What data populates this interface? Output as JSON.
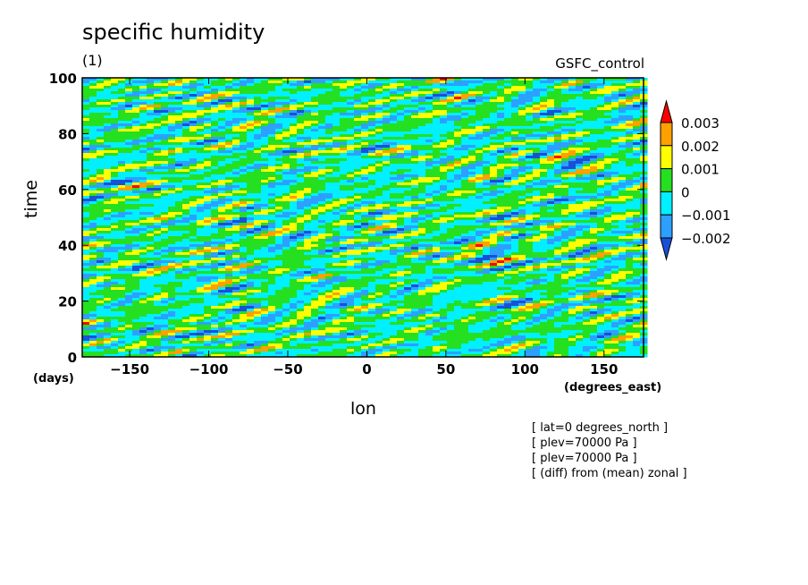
{
  "chart_data": {
    "type": "heatmap",
    "title": "specific humidity",
    "subtitle": "(1)",
    "run_label": "GSFC_control",
    "xlabel": "lon",
    "ylabel": "time",
    "x_unit": "(degrees_east)",
    "y_unit": "(days)",
    "xlim": [
      -180,
      175
    ],
    "ylim": [
      0,
      100
    ],
    "x_ticks": [
      -150,
      -100,
      -50,
      0,
      50,
      100,
      150
    ],
    "x_tick_labels": [
      "−150",
      "−100",
      "−50",
      "0",
      "50",
      "100",
      "150"
    ],
    "y_ticks": [
      0,
      20,
      40,
      60,
      80,
      100
    ],
    "y_tick_labels": [
      "0",
      "20",
      "40",
      "60",
      "80",
      "100"
    ],
    "color_levels": [
      -0.002,
      -0.001,
      0,
      0.001,
      0.002,
      0.003
    ],
    "colorbar_labels": [
      "0.003",
      "0.002",
      "0.001",
      "0",
      "−0.001",
      "−0.002"
    ],
    "colors": [
      "#1a50d8",
      "#2da0ff",
      "#00f0ff",
      "#25e020",
      "#ffff00",
      "#ffa000",
      "#ff0000"
    ],
    "notes": [
      "[ lat=0 degrees_north ]",
      "[ plev=70000 Pa ]",
      "[ plev=70000 Pa ]",
      "[ (diff) from (mean) zonal ]"
    ]
  }
}
